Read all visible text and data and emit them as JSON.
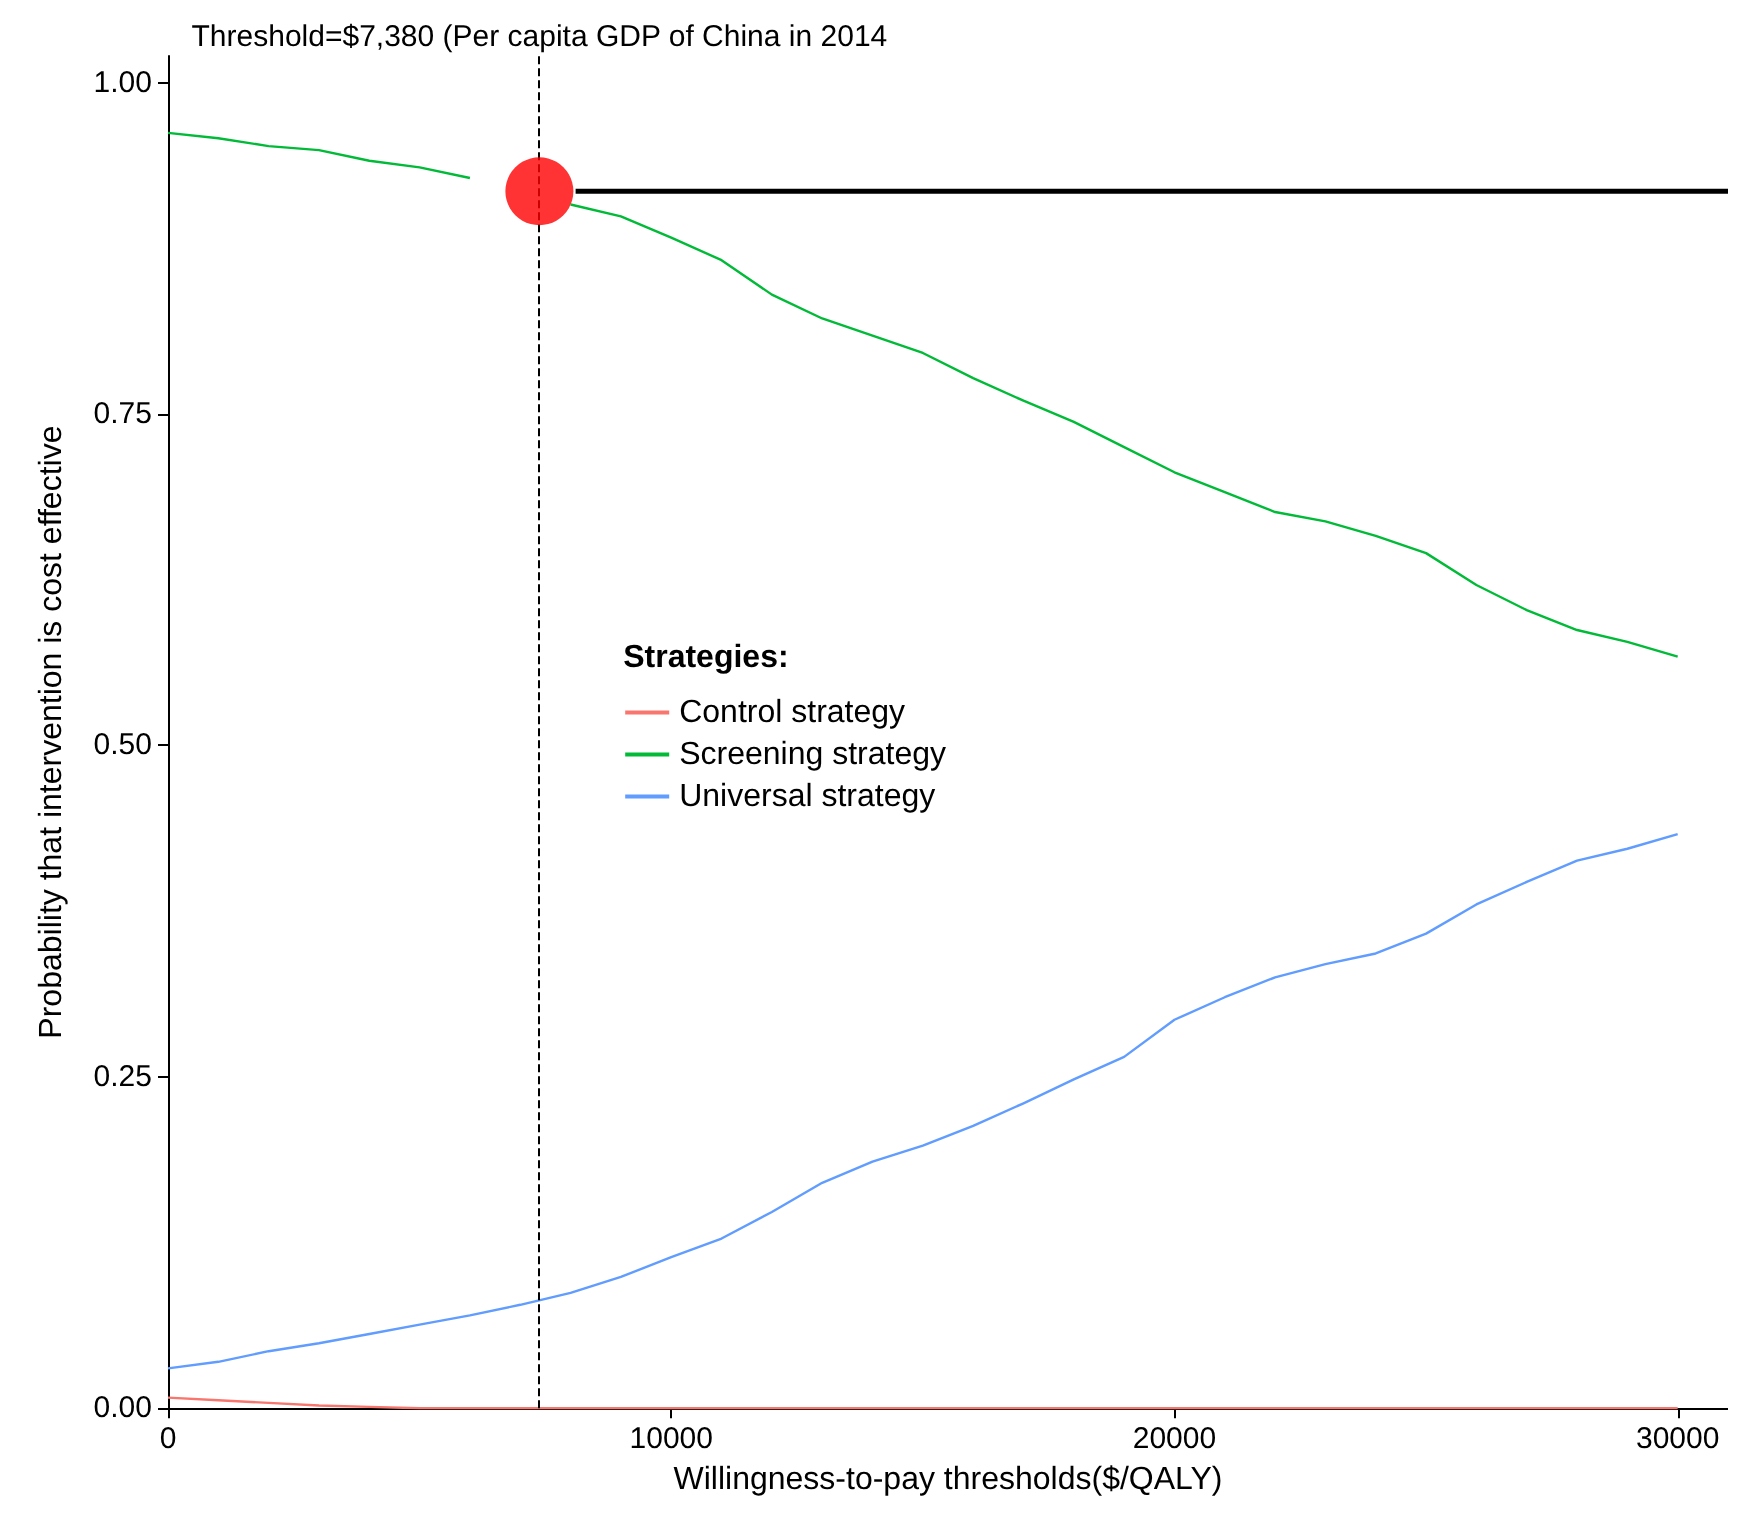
{
  "chart_data": {
    "type": "line",
    "xlabel": "Willingness-to-pay thresholds($/QALY)",
    "ylabel": "Probability that intervention is cost effective",
    "legend_title": "Strategies:",
    "legend": "center",
    "x": [
      0,
      1000,
      2000,
      3000,
      4000,
      5000,
      6000,
      7000,
      8000,
      9000,
      10000,
      11000,
      12000,
      13000,
      14000,
      15000,
      16000,
      17000,
      18000,
      19000,
      20000,
      21000,
      22000,
      23000,
      24000,
      25000,
      26000,
      27000,
      28000,
      29000,
      30000
    ],
    "series": [
      {
        "name": "Control strategy",
        "color": "#f8766d",
        "values": [
          0.008,
          0.006,
          0.004,
          0.002,
          0.001,
          0,
          0,
          0,
          0,
          0,
          0,
          0,
          0,
          0,
          0,
          0,
          0,
          0,
          0,
          0,
          0,
          0,
          0,
          0,
          0,
          0,
          0,
          0,
          0,
          0,
          0
        ]
      },
      {
        "name": "Screening strategy",
        "color": "#00ba38",
        "values": [
          0.962,
          0.958,
          0.952,
          0.949,
          0.941,
          0.936,
          0.928,
          null,
          0.908,
          0.899,
          0.883,
          0.866,
          0.84,
          0.822,
          0.809,
          0.796,
          0.777,
          0.76,
          0.744,
          0.725,
          0.706,
          0.691,
          0.676,
          0.669,
          0.658,
          0.645,
          0.621,
          0.602,
          0.587,
          0.578,
          0.567
        ]
      },
      {
        "name": "Universal strategy",
        "color": "#619cff",
        "values": [
          0.03,
          0.035,
          0.043,
          0.049,
          0.056,
          0.063,
          0.07,
          0.078,
          0.087,
          0.099,
          0.114,
          0.128,
          0.148,
          0.17,
          0.186,
          0.198,
          0.213,
          0.23,
          0.248,
          0.265,
          0.293,
          0.31,
          0.325,
          0.335,
          0.343,
          0.358,
          0.38,
          0.397,
          0.413,
          0.422,
          0.433
        ]
      },
      {
        "type": "line",
        "color": "#000000",
        "x": [
          8100,
          31000
        ],
        "values": [
          0.918,
          0.918
        ]
      },
      {
        "type": "scatter",
        "color": "#ff0000",
        "x": [
          7380
        ],
        "values": [
          0.918
        ]
      }
    ],
    "xlim": [
      0,
      31000
    ],
    "xticks": [
      0,
      10000,
      20000,
      30000
    ],
    "ylim": [
      0,
      1.02
    ],
    "yticks": [
      {
        "value": 0,
        "label": "0.00"
      },
      {
        "value": 0.25,
        "label": "0.25"
      },
      {
        "value": 0.5,
        "label": "0.50"
      },
      {
        "value": 0.75,
        "label": "0.75"
      },
      {
        "value": 1,
        "label": "1.00"
      }
    ],
    "ref_lines": [
      {
        "axis": "x",
        "value": 7380,
        "label": "Threshold=$7,380 (Per capita GDP of China in 2014",
        "color": "#000000",
        "line_style": "dashed"
      }
    ],
    "grid": false
  }
}
